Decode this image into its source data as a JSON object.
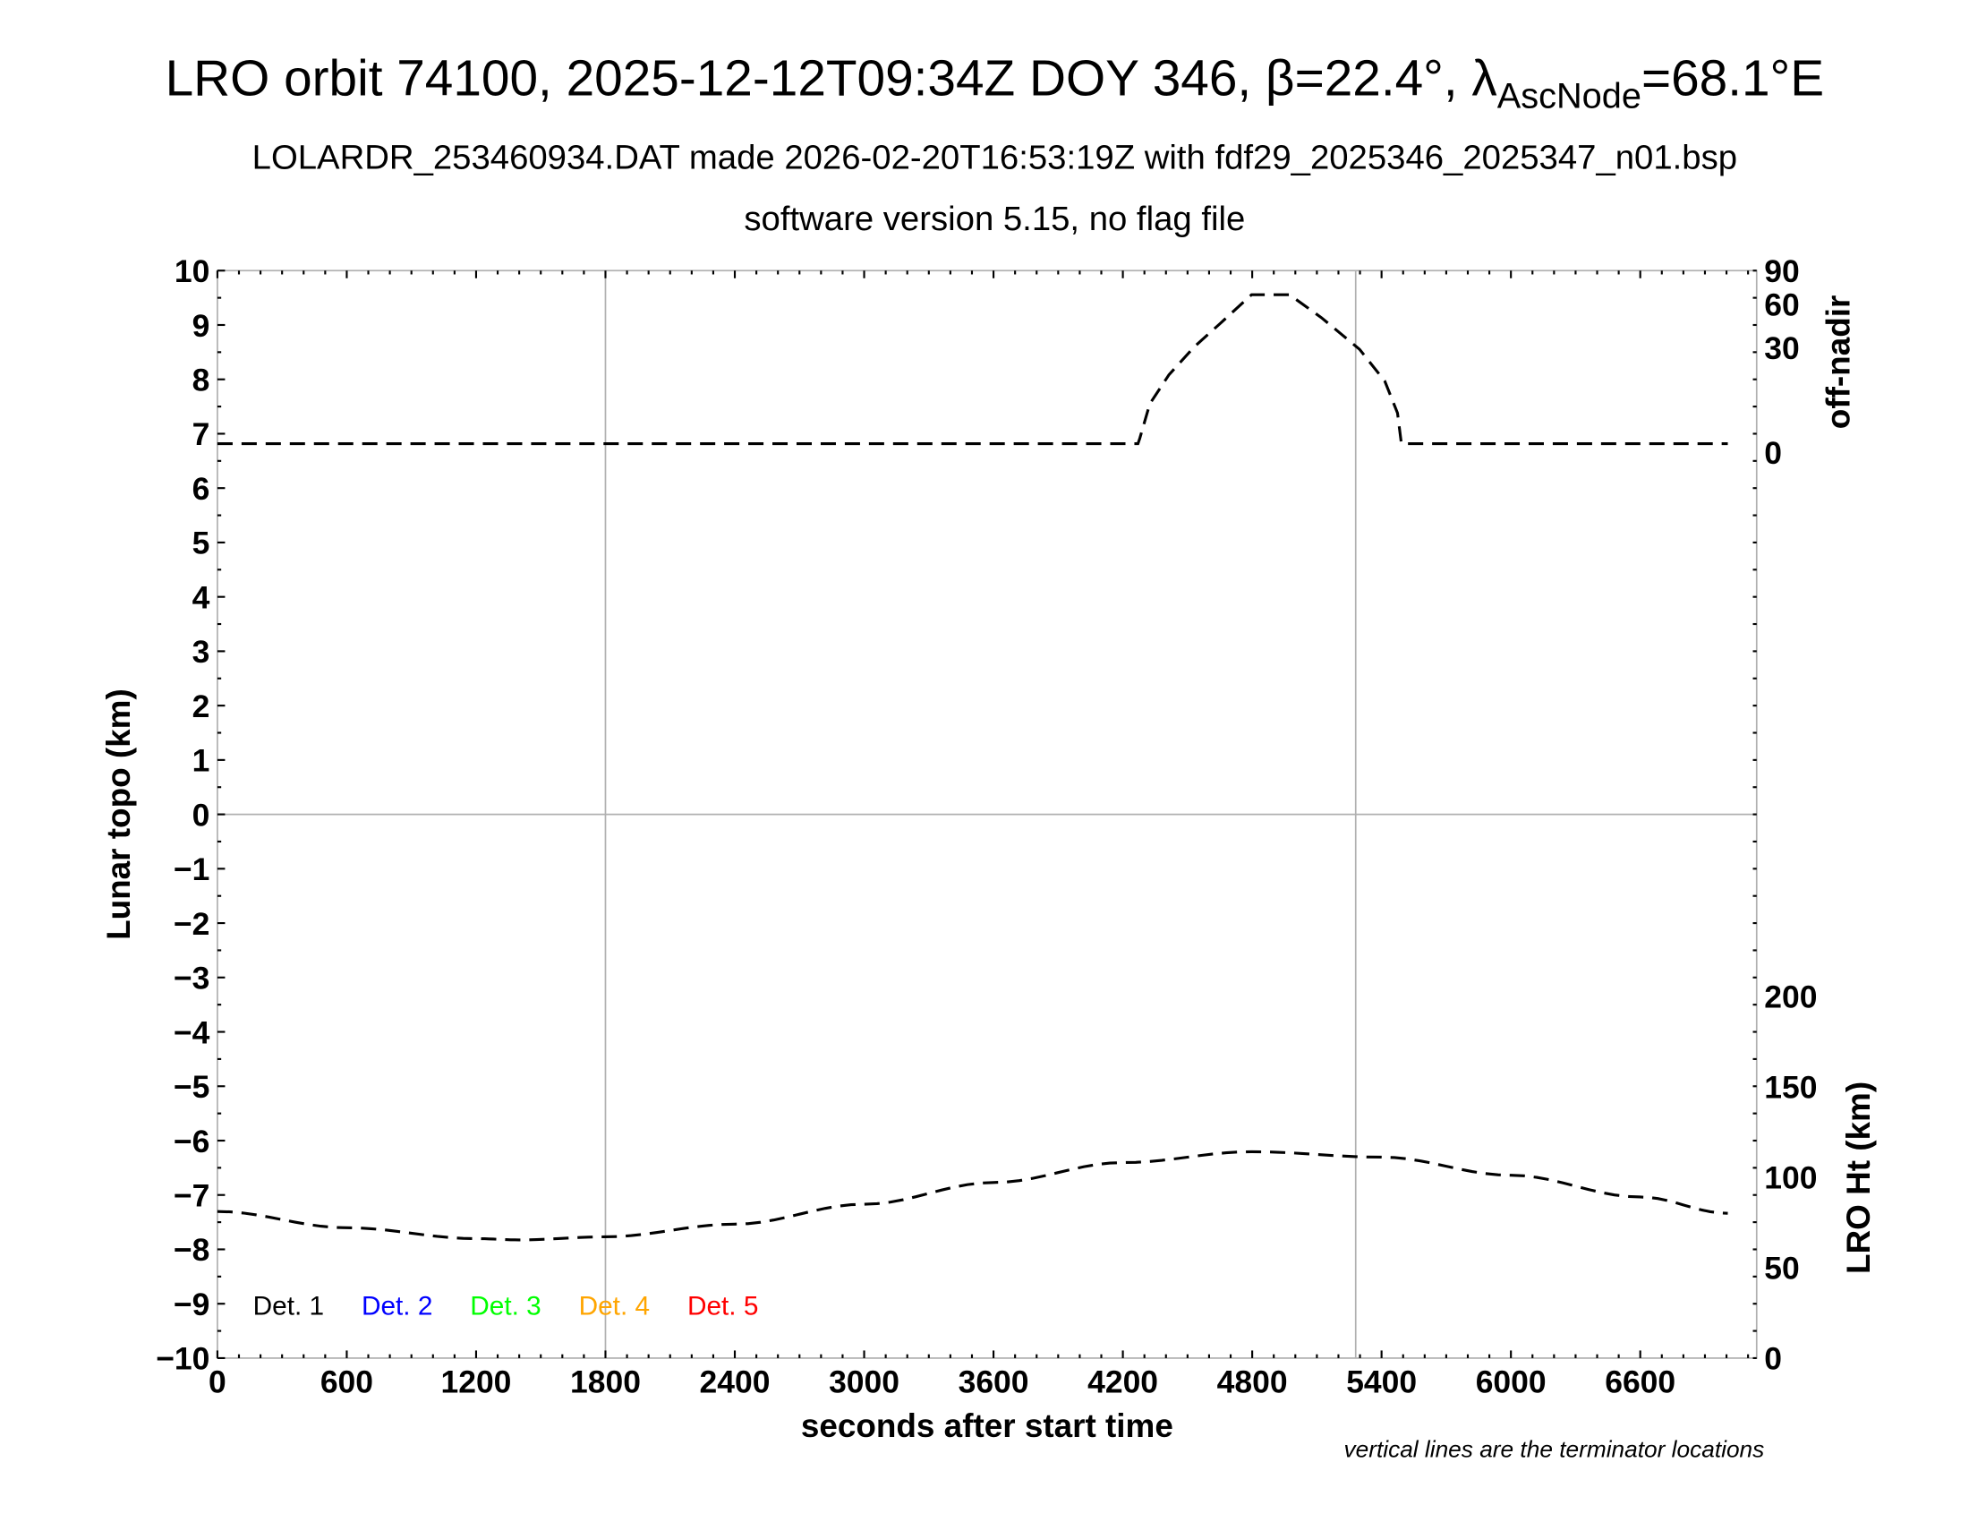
{
  "title": {
    "main": "LRO orbit 74100, 2025-12-12T09:34Z DOY 346, β=22.4°, λ",
    "sub": "AscNode",
    "tail": "=68.1°E"
  },
  "subtitle1": "LOLARDR_253460934.DAT made 2026-02-20T16:53:19Z with fdf29_2025346_2025347_n01.bsp",
  "subtitle2": "software version 5.15, no flag file",
  "note": "vertical lines are the terminator locations",
  "chart_data": {
    "type": "line",
    "xlabel": "seconds after start time",
    "xlim": [
      0,
      7140
    ],
    "xticks": [
      0,
      600,
      1200,
      1800,
      2400,
      3000,
      3600,
      4200,
      4800,
      5400,
      6000,
      6600
    ],
    "ylabel_left": "Lunar topo (km)",
    "ylim_left": [
      -10,
      10
    ],
    "yticks_left": [
      10,
      9,
      8,
      7,
      6,
      5,
      4,
      3,
      2,
      1,
      0,
      -1,
      -2,
      -3,
      -4,
      -5,
      -6,
      -7,
      -8,
      -9,
      -10
    ],
    "ylabel_right_top": "off-nadir",
    "yticks_right_top": [
      90,
      60,
      30,
      0
    ],
    "right_top_scale": "sqrt",
    "ylabel_right_bottom": "LRO Ht (km)",
    "yticks_right_bottom": [
      200,
      150,
      100,
      50,
      0
    ],
    "terminators_s": [
      1800,
      5280
    ],
    "grid": false,
    "legend": {
      "placement": "bottom-left",
      "entries": [
        {
          "label": "Det. 1",
          "color": "#000000"
        },
        {
          "label": "Det. 2",
          "color": "#0000ff"
        },
        {
          "label": "Det. 3",
          "color": "#00ff00"
        },
        {
          "label": "Det. 4",
          "color": "#ffa500"
        },
        {
          "label": "Det. 5",
          "color": "#ff0000"
        }
      ]
    },
    "series": [
      {
        "axis": "off-nadir (deg)",
        "x": [
          0,
          1000,
          2000,
          3000,
          4000,
          4270,
          4278,
          4325,
          4414,
          4531,
          4649,
          4797,
          4973,
          5121,
          5298,
          5415,
          5474,
          5492,
          5500,
          6000,
          7006
        ],
        "y": [
          0.2,
          0.2,
          0.2,
          0.2,
          0.2,
          0.2,
          0.5,
          6.4,
          16.4,
          30.3,
          44.9,
          67.7,
          67.7,
          49.4,
          28.9,
          13.8,
          4.2,
          0.2,
          0.2,
          0.2,
          0.2
        ]
      },
      {
        "axis": "LRO Ht (km)",
        "x": [
          0,
          600,
          1200,
          1400,
          1800,
          2400,
          3000,
          3600,
          4200,
          4800,
          5400,
          6000,
          6600,
          7006
        ],
        "y": [
          81,
          72,
          66,
          65.3,
          67,
          74,
          85,
          97,
          108,
          114,
          111,
          101,
          89,
          80
        ]
      }
    ]
  }
}
